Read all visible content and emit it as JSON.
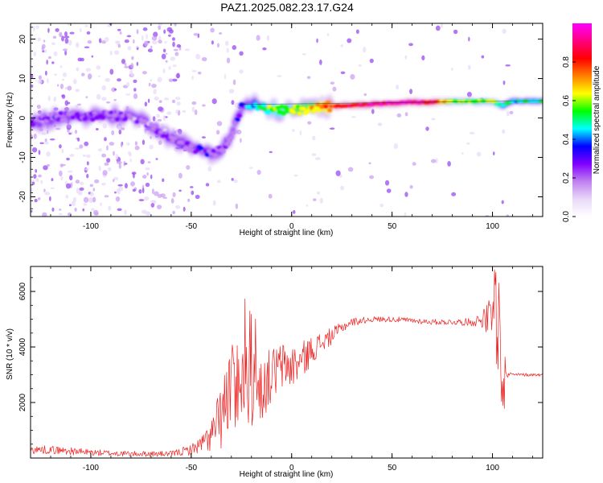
{
  "title": "PAZ1.2025.082.23.17.G24",
  "chart_data": [
    {
      "type": "heatmap",
      "xlabel": "Height of straight line (km)",
      "ylabel": "Frequency (Hz)",
      "xlim": [
        -130,
        125
      ],
      "ylim": [
        -25,
        24
      ],
      "xticks": [
        -100,
        -50,
        0,
        50,
        100
      ],
      "yticks": [
        -20,
        -10,
        0,
        10,
        20
      ],
      "colorbar": {
        "label": "Normalized spectral amplitude",
        "range": [
          0,
          1
        ],
        "ticks": [
          0.0,
          0.2,
          0.4,
          0.6,
          0.8
        ],
        "tick_labels": [
          "0.0",
          "0.2",
          "0.4",
          "0.6",
          "0.8"
        ],
        "colormap": [
          "#ffffff",
          "#e8d8f8",
          "#c080f0",
          "#8000ff",
          "#0000ff",
          "#00ffff",
          "#00ff00",
          "#ffff00",
          "#ff8000",
          "#ff0000",
          "#ff0080",
          "#ff00ff"
        ]
      },
      "ridge": {
        "x": [
          -130,
          -120,
          -110,
          -100,
          -90,
          -80,
          -70,
          -60,
          -50,
          -40,
          -35,
          -30,
          -25,
          -20,
          -10,
          0,
          10,
          20,
          30,
          40,
          50,
          60,
          70,
          80,
          90,
          100,
          105,
          110,
          120,
          125
        ],
        "frequency": [
          -1.5,
          0,
          0.5,
          0.5,
          0.5,
          0.5,
          -1.5,
          -5,
          -7.5,
          -8.5,
          -8.5,
          -4,
          2.5,
          3.5,
          2,
          1.8,
          2.5,
          3,
          3.2,
          3.5,
          3.8,
          4,
          4,
          4.2,
          4.2,
          4.3,
          3,
          4.2,
          4.3,
          4.3
        ],
        "amplitude": [
          0.25,
          0.25,
          0.25,
          0.25,
          0.25,
          0.2,
          0.2,
          0.2,
          0.25,
          0.25,
          0.2,
          0.2,
          0.35,
          0.4,
          0.55,
          0.6,
          0.65,
          0.8,
          0.85,
          0.9,
          0.9,
          0.92,
          0.88,
          0.6,
          0.55,
          0.6,
          0.5,
          0.45,
          0.5,
          0.5
        ]
      }
    },
    {
      "type": "line",
      "xlabel": "Height of straight line (km)",
      "ylabel": "SNR (10 * v/v)",
      "xlim": [
        -130,
        125
      ],
      "ylim": [
        0,
        6900
      ],
      "xticks": [
        -100,
        -50,
        0,
        50,
        100
      ],
      "yticks": [
        2000,
        4000,
        6000
      ],
      "color": "#ee2222",
      "envelope": {
        "x": [
          -130,
          -120,
          -100,
          -80,
          -60,
          -50,
          -45,
          -40,
          -35,
          -30,
          -25,
          -20,
          -15,
          -10,
          -5,
          0,
          5,
          10,
          20,
          25,
          30,
          40,
          50,
          60,
          70,
          80,
          90,
          95,
          100,
          103,
          105,
          107,
          110,
          120,
          125
        ],
        "base": [
          300,
          300,
          200,
          150,
          150,
          300,
          500,
          800,
          1500,
          2500,
          3000,
          2500,
          2500,
          3000,
          3300,
          3300,
          3500,
          3900,
          4400,
          4700,
          4900,
          5000,
          5000,
          4950,
          4900,
          4900,
          4900,
          5000,
          5000,
          4000,
          4000,
          3000,
          3000,
          3000,
          3000
        ],
        "noise": [
          150,
          150,
          120,
          100,
          100,
          200,
          300,
          600,
          1200,
          1600,
          1600,
          1400,
          1200,
          1000,
          900,
          800,
          700,
          500,
          300,
          200,
          150,
          100,
          100,
          100,
          100,
          100,
          150,
          300,
          1000,
          1500,
          1500,
          200,
          60,
          60,
          60
        ]
      }
    }
  ]
}
